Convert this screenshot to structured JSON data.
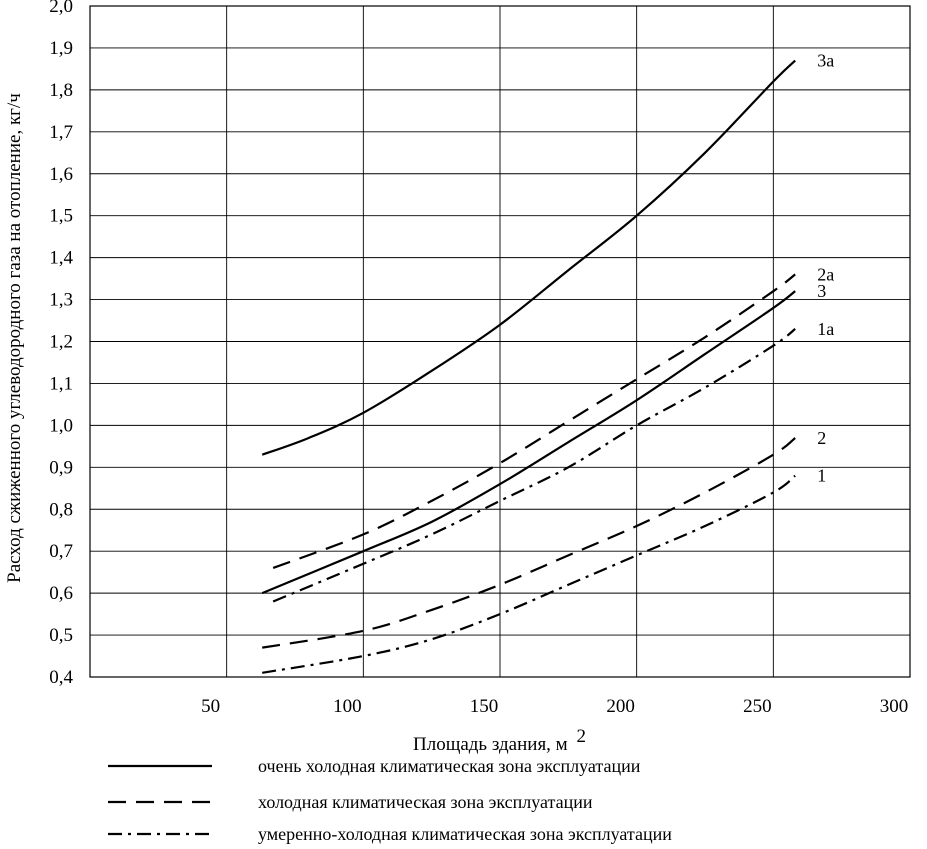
{
  "chart_data": {
    "type": "line",
    "xlabel": "Площадь здания, м",
    "xlabel_sup": "2",
    "ylabel": "Расход сжиженного углеводородного газа на отопление, кг/ч",
    "xlim": [
      0,
      300
    ],
    "ylim": [
      0.4,
      2.0
    ],
    "grid": true,
    "x_ticks": [
      "50",
      "100",
      "150",
      "200",
      "250",
      "300"
    ],
    "y_ticks": [
      "0,4",
      "0,5",
      "0,6",
      "0,7",
      "0,8",
      "0,9",
      "1,0",
      "1,1",
      "1,2",
      "1,3",
      "1,4",
      "1,5",
      "1,6",
      "1,7",
      "1,8",
      "1,9",
      "2,0"
    ],
    "series": [
      {
        "name": "3а",
        "style": "solid",
        "x": [
          63,
          80,
          100,
          125,
          150,
          175,
          200,
          225,
          250,
          258
        ],
        "y": [
          0.93,
          0.97,
          1.03,
          1.13,
          1.24,
          1.37,
          1.5,
          1.65,
          1.82,
          1.87
        ]
      },
      {
        "name": "2а",
        "style": "dashed",
        "x": [
          67,
          100,
          125,
          150,
          175,
          200,
          225,
          250,
          258
        ],
        "y": [
          0.66,
          0.74,
          0.82,
          0.91,
          1.01,
          1.11,
          1.21,
          1.32,
          1.36
        ]
      },
      {
        "name": "3",
        "style": "solid",
        "x": [
          63,
          100,
          125,
          150,
          175,
          200,
          225,
          250,
          258
        ],
        "y": [
          0.6,
          0.7,
          0.77,
          0.86,
          0.96,
          1.06,
          1.17,
          1.28,
          1.32
        ]
      },
      {
        "name": "1а",
        "style": "dashdot",
        "x": [
          67,
          100,
          125,
          150,
          175,
          200,
          225,
          250,
          258
        ],
        "y": [
          0.58,
          0.67,
          0.74,
          0.82,
          0.9,
          1.0,
          1.09,
          1.19,
          1.23
        ]
      },
      {
        "name": "2",
        "style": "dashed",
        "x": [
          63,
          100,
          125,
          150,
          175,
          200,
          225,
          250,
          258
        ],
        "y": [
          0.47,
          0.51,
          0.56,
          0.62,
          0.69,
          0.76,
          0.84,
          0.93,
          0.97
        ]
      },
      {
        "name": "1",
        "style": "dashdot",
        "x": [
          63,
          100,
          125,
          150,
          175,
          200,
          225,
          250,
          258
        ],
        "y": [
          0.41,
          0.45,
          0.49,
          0.55,
          0.62,
          0.69,
          0.76,
          0.84,
          0.88
        ]
      }
    ]
  },
  "legend": [
    {
      "style": "solid",
      "label": "очень холодная климатическая зона эксплуатации"
    },
    {
      "style": "dashed",
      "label": "холодная климатическая зона эксплуатации"
    },
    {
      "style": "dashdot",
      "label": "умеренно-холодная климатическая зона эксплуатации"
    }
  ]
}
